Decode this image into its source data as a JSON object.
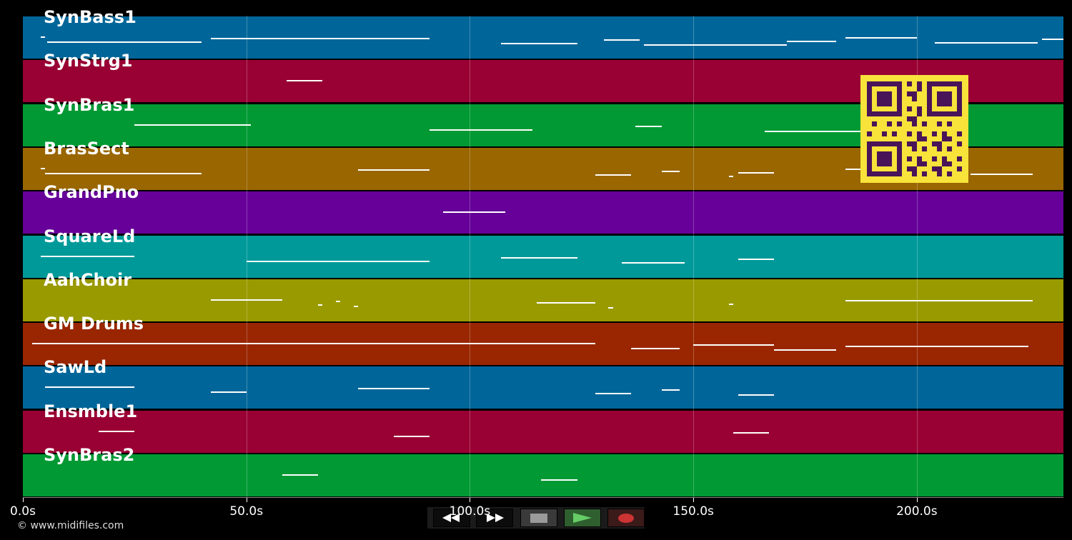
{
  "timeline": {
    "duration_seconds": 232.8,
    "ticks": [
      {
        "value": 0,
        "label": "0.0s"
      },
      {
        "value": 50,
        "label": "50.0s"
      },
      {
        "value": 100,
        "label": "100.0s"
      },
      {
        "value": 150,
        "label": "150.0s"
      },
      {
        "value": 200,
        "label": "200.0s"
      }
    ]
  },
  "tracks": [
    {
      "name": "SynBass1",
      "color": "#006699",
      "notes": [
        [
          4,
          5
        ],
        [
          5.5,
          40
        ],
        [
          42,
          91
        ],
        [
          107,
          124
        ],
        [
          130,
          138
        ],
        [
          139,
          171
        ],
        [
          171,
          182
        ],
        [
          184,
          200
        ],
        [
          204,
          227
        ],
        [
          228,
          233
        ]
      ]
    },
    {
      "name": "SynStrg1",
      "color": "#990033",
      "notes": [
        [
          59,
          67
        ]
      ]
    },
    {
      "name": "SynBras1",
      "color": "#009933",
      "notes": [
        [
          25,
          51
        ],
        [
          91,
          114
        ],
        [
          137,
          143
        ],
        [
          166,
          190
        ]
      ]
    },
    {
      "name": "BrasSect",
      "color": "#996600",
      "notes": [
        [
          4,
          5
        ],
        [
          5,
          40
        ],
        [
          75,
          91
        ],
        [
          128,
          136
        ],
        [
          143,
          147
        ],
        [
          158,
          159
        ],
        [
          160,
          168
        ],
        [
          184,
          190
        ],
        [
          212,
          226
        ]
      ]
    },
    {
      "name": "GrandPno",
      "color": "#660099",
      "notes": [
        [
          94,
          108
        ]
      ]
    },
    {
      "name": "SquareLd",
      "color": "#009999",
      "notes": [
        [
          4,
          25
        ],
        [
          50,
          91
        ],
        [
          107,
          124
        ],
        [
          134,
          148
        ],
        [
          160,
          168
        ]
      ]
    },
    {
      "name": "AahChoir",
      "color": "#999900",
      "notes": [
        [
          42,
          58
        ],
        [
          66,
          67
        ],
        [
          70,
          71
        ],
        [
          74,
          75
        ],
        [
          115,
          128
        ],
        [
          131,
          132
        ],
        [
          158,
          159
        ],
        [
          184,
          226
        ]
      ]
    },
    {
      "name": "GM Drums",
      "color": "#992600",
      "notes": [
        [
          2,
          128
        ],
        [
          136,
          147
        ],
        [
          150,
          168
        ],
        [
          168,
          182
        ],
        [
          184,
          225
        ]
      ]
    },
    {
      "name": "SawLd",
      "color": "#006699",
      "notes": [
        [
          5,
          25
        ],
        [
          42,
          50
        ],
        [
          75,
          91
        ],
        [
          128,
          136
        ],
        [
          143,
          147
        ],
        [
          160,
          168
        ]
      ]
    },
    {
      "name": "Ensmble1",
      "color": "#990033",
      "notes": [
        [
          17,
          25
        ],
        [
          83,
          91
        ],
        [
          159,
          167
        ]
      ]
    },
    {
      "name": "SynBras2",
      "color": "#009933",
      "notes": [
        [
          58,
          66
        ],
        [
          116,
          124
        ]
      ]
    }
  ],
  "transport": {
    "rewind": "rewind-icon",
    "forward": "fast-forward-icon",
    "stop": "stop-icon",
    "play": "play-icon",
    "record": "record-icon"
  },
  "copyright": "© www.midifiles.com"
}
